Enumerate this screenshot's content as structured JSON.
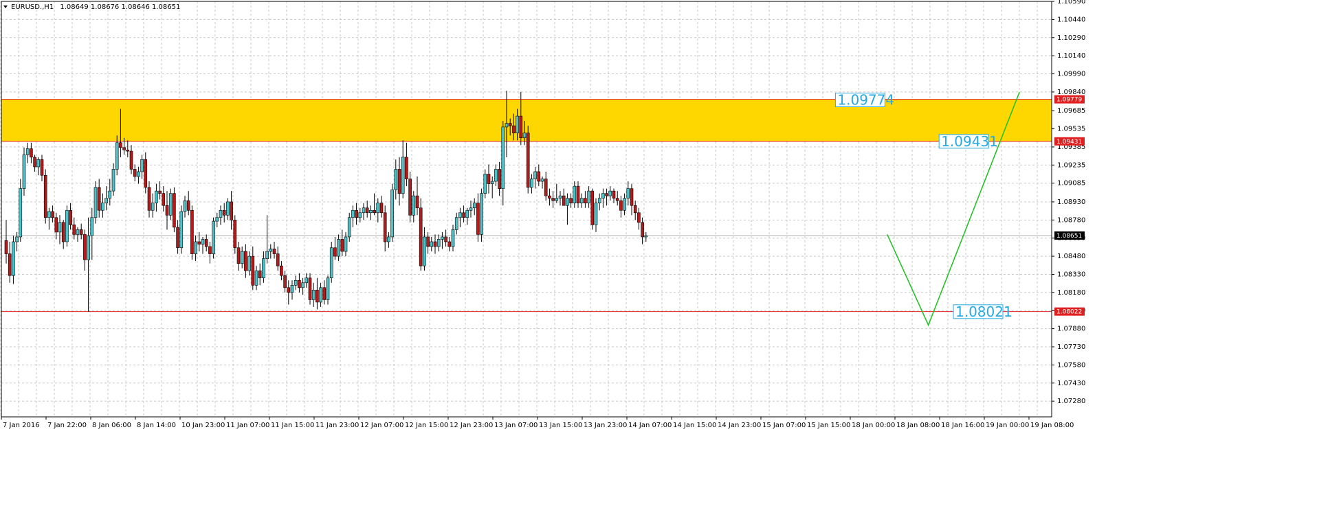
{
  "header": {
    "symbol": "EURUSD.,H1",
    "ohlc": "1.08649 1.08676 1.08646 1.08651"
  },
  "colors": {
    "background": "#ffffff",
    "grid": "#c8c8c8",
    "bull": "#4fc1c9",
    "bear": "#b31b1b",
    "zone_fill": "#ffd700",
    "zone_border": "#e02020",
    "support_line": "#e02020",
    "projection": "#27c227",
    "level_label": "#27a9e1",
    "price_tag_red": "#e02020",
    "price_tag_black": "#000000"
  },
  "chart_data": {
    "type": "candlestick",
    "symbol": "EURUSD.",
    "timeframe": "H1",
    "ylim": [
      1.0715,
      1.1059
    ],
    "y_ticks": [
      "1.10590",
      "1.10440",
      "1.10290",
      "1.10140",
      "1.09990",
      "1.09840",
      "1.09685",
      "1.09535",
      "1.09385",
      "1.09235",
      "1.09085",
      "1.08930",
      "1.08780",
      "1.08630",
      "1.08480",
      "1.08330",
      "1.08180",
      "1.08030",
      "1.07880",
      "1.07730",
      "1.07580",
      "1.07430",
      "1.07280"
    ],
    "x_labels": [
      "7 Jan 2016",
      "7 Jan 22:00",
      "8 Jan 06:00",
      "8 Jan 14:00",
      "10 Jan 23:00",
      "11 Jan 07:00",
      "11 Jan 15:00",
      "11 Jan 23:00",
      "12 Jan 07:00",
      "12 Jan 15:00",
      "12 Jan 23:00",
      "13 Jan 07:00",
      "13 Jan 15:00",
      "13 Jan 23:00",
      "14 Jan 07:00",
      "14 Jan 15:00",
      "14 Jan 23:00",
      "15 Jan 07:00",
      "15 Jan 15:00",
      "18 Jan 00:00",
      "18 Jan 08:00",
      "18 Jan 16:00",
      "19 Jan 00:00",
      "19 Jan 08:00"
    ],
    "grid": true,
    "zone": {
      "top": 1.09779,
      "bottom": 1.09431
    },
    "support": 1.08022,
    "current_price": 1.08651,
    "price_tags": [
      {
        "value": 1.09779,
        "text": "1.09779",
        "color": "red"
      },
      {
        "value": 1.09431,
        "text": "1.09431",
        "color": "red"
      },
      {
        "value": 1.08651,
        "text": "1.08651",
        "color": "black"
      },
      {
        "value": 1.08022,
        "text": "1.08022",
        "color": "red"
      }
    ],
    "level_labels": [
      {
        "text": "1.09774",
        "value": 1.09774,
        "bar": 232
      },
      {
        "text": "1.09431",
        "value": 1.09431,
        "bar": 261
      },
      {
        "text": "1.08021",
        "value": 1.08021,
        "bar": 265
      }
    ],
    "projection": [
      {
        "bar": 246.5,
        "value": 1.0866
      },
      {
        "bar": 258,
        "value": 1.0791
      },
      {
        "bar": 283.5,
        "value": 1.0984
      }
    ],
    "candles": [
      [
        1.0861,
        1.0878,
        1.0842,
        1.085
      ],
      [
        1.085,
        1.086,
        1.0826,
        1.0832
      ],
      [
        1.0832,
        1.0865,
        1.0825,
        1.086
      ],
      [
        1.086,
        1.0868,
        1.0852,
        1.0864
      ],
      [
        1.0864,
        1.0912,
        1.086,
        1.0904
      ],
      [
        1.0904,
        1.0938,
        1.0898,
        1.0932
      ],
      [
        1.0932,
        1.0942,
        1.0925,
        1.0937
      ],
      [
        1.0937,
        1.0942,
        1.0925,
        1.093
      ],
      [
        1.093,
        1.0932,
        1.0918,
        1.0922
      ],
      [
        1.0922,
        1.093,
        1.0915,
        1.0928
      ],
      [
        1.0928,
        1.0932,
        1.091,
        1.0915
      ],
      [
        1.0915,
        1.092,
        1.0875,
        1.088
      ],
      [
        1.088,
        1.0888,
        1.087,
        1.0885
      ],
      [
        1.0885,
        1.089,
        1.0876,
        1.088
      ],
      [
        1.088,
        1.0884,
        1.0862,
        1.0868
      ],
      [
        1.0868,
        1.0882,
        1.0858,
        1.0876
      ],
      [
        1.0876,
        1.0878,
        1.0854,
        1.086
      ],
      [
        1.086,
        1.089,
        1.0856,
        1.0886
      ],
      [
        1.0886,
        1.0892,
        1.087,
        1.0874
      ],
      [
        1.0874,
        1.088,
        1.0862,
        1.0866
      ],
      [
        1.0866,
        1.0872,
        1.086,
        1.087
      ],
      [
        1.087,
        1.0875,
        1.0862,
        1.0866
      ],
      [
        1.0866,
        1.087,
        1.0836,
        1.0845
      ],
      [
        1.0845,
        1.088,
        1.0802,
        1.0865
      ],
      [
        1.0865,
        1.0888,
        1.0845,
        1.088
      ],
      [
        1.088,
        1.091,
        1.0875,
        1.0905
      ],
      [
        1.0905,
        1.0912,
        1.088,
        1.0886
      ],
      [
        1.0886,
        1.09,
        1.088,
        1.0892
      ],
      [
        1.0892,
        1.0906,
        1.0886,
        1.0896
      ],
      [
        1.0896,
        1.0912,
        1.089,
        1.0902
      ],
      [
        1.0902,
        1.0925,
        1.0898,
        1.092
      ],
      [
        1.092,
        1.0948,
        1.0915,
        1.0942
      ],
      [
        1.0942,
        1.097,
        1.093,
        1.0938
      ],
      [
        1.0938,
        1.0946,
        1.0932,
        1.0936
      ],
      [
        1.0936,
        1.0944,
        1.093,
        1.0935
      ],
      [
        1.0935,
        1.094,
        1.0916,
        1.092
      ],
      [
        1.092,
        1.0924,
        1.091,
        1.0914
      ],
      [
        1.0914,
        1.0922,
        1.0908,
        1.0918
      ],
      [
        1.0918,
        1.0932,
        1.0912,
        1.0928
      ],
      [
        1.0928,
        1.0934,
        1.09,
        1.0905
      ],
      [
        1.0905,
        1.091,
        1.088,
        1.0886
      ],
      [
        1.0886,
        1.09,
        1.088,
        1.0892
      ],
      [
        1.0892,
        1.0908,
        1.0885,
        1.0902
      ],
      [
        1.0902,
        1.091,
        1.0895,
        1.09
      ],
      [
        1.09,
        1.0906,
        1.0885,
        1.089
      ],
      [
        1.089,
        1.0902,
        1.087,
        1.0882
      ],
      [
        1.0882,
        1.0904,
        1.0878,
        1.09
      ],
      [
        1.09,
        1.0905,
        1.0868,
        1.0872
      ],
      [
        1.0872,
        1.0878,
        1.085,
        1.0855
      ],
      [
        1.0855,
        1.089,
        1.085,
        1.0885
      ],
      [
        1.0885,
        1.0898,
        1.088,
        1.0894
      ],
      [
        1.0894,
        1.0902,
        1.0882,
        1.0886
      ],
      [
        1.0886,
        1.089,
        1.0845,
        1.085
      ],
      [
        1.085,
        1.0865,
        1.0844,
        1.086
      ],
      [
        1.086,
        1.0868,
        1.0852,
        1.0858
      ],
      [
        1.0858,
        1.0864,
        1.085,
        1.0862
      ],
      [
        1.0862,
        1.0866,
        1.0852,
        1.0856
      ],
      [
        1.0856,
        1.086,
        1.0842,
        1.085
      ],
      [
        1.085,
        1.088,
        1.0846,
        1.0877
      ],
      [
        1.0877,
        1.0884,
        1.0872,
        1.088
      ],
      [
        1.088,
        1.089,
        1.0874,
        1.0886
      ],
      [
        1.0886,
        1.0892,
        1.0876,
        1.0882
      ],
      [
        1.0882,
        1.0896,
        1.0878,
        1.0893
      ],
      [
        1.0893,
        1.0902,
        1.087,
        1.0878
      ],
      [
        1.0878,
        1.0882,
        1.085,
        1.0855
      ],
      [
        1.0855,
        1.086,
        1.0836,
        1.0842
      ],
      [
        1.0842,
        1.0856,
        1.0838,
        1.0852
      ],
      [
        1.0852,
        1.0858,
        1.083,
        1.0836
      ],
      [
        1.0836,
        1.0852,
        1.0832,
        1.0848
      ],
      [
        1.0848,
        1.0856,
        1.082,
        1.0824
      ],
      [
        1.0824,
        1.084,
        1.082,
        1.0836
      ],
      [
        1.0836,
        1.0842,
        1.0824,
        1.083
      ],
      [
        1.083,
        1.0852,
        1.0826,
        1.0846
      ],
      [
        1.0846,
        1.0882,
        1.0842,
        1.0852
      ],
      [
        1.0852,
        1.0858,
        1.0846,
        1.0854
      ],
      [
        1.0854,
        1.086,
        1.0846,
        1.085
      ],
      [
        1.085,
        1.0856,
        1.0836,
        1.084
      ],
      [
        1.084,
        1.0844,
        1.0828,
        1.0832
      ],
      [
        1.0832,
        1.0836,
        1.0818,
        1.0822
      ],
      [
        1.0822,
        1.0828,
        1.0808,
        1.0818
      ],
      [
        1.0818,
        1.0828,
        1.0812,
        1.0824
      ],
      [
        1.0824,
        1.0832,
        1.082,
        1.0828
      ],
      [
        1.0828,
        1.0834,
        1.0818,
        1.0822
      ],
      [
        1.0822,
        1.083,
        1.0816,
        1.0826
      ],
      [
        1.0826,
        1.0834,
        1.0822,
        1.083
      ],
      [
        1.083,
        1.0834,
        1.0808,
        1.0812
      ],
      [
        1.0812,
        1.0826,
        1.0806,
        1.082
      ],
      [
        1.082,
        1.083,
        1.0804,
        1.081
      ],
      [
        1.081,
        1.0826,
        1.0806,
        1.0822
      ],
      [
        1.0822,
        1.0828,
        1.0808,
        1.0812
      ],
      [
        1.0812,
        1.0832,
        1.0808,
        1.083
      ],
      [
        1.083,
        1.086,
        1.0826,
        1.0855
      ],
      [
        1.0855,
        1.0864,
        1.0845,
        1.0848
      ],
      [
        1.0848,
        1.0866,
        1.0844,
        1.0862
      ],
      [
        1.0862,
        1.087,
        1.0848,
        1.0852
      ],
      [
        1.0852,
        1.0868,
        1.0848,
        1.0864
      ],
      [
        1.0864,
        1.0884,
        1.086,
        1.088
      ],
      [
        1.088,
        1.089,
        1.0872,
        1.0886
      ],
      [
        1.0886,
        1.0892,
        1.0874,
        1.088
      ],
      [
        1.088,
        1.0888,
        1.0876,
        1.0884
      ],
      [
        1.0884,
        1.0892,
        1.0878,
        1.0888
      ],
      [
        1.0888,
        1.0894,
        1.088,
        1.0884
      ],
      [
        1.0884,
        1.089,
        1.0878,
        1.0886
      ],
      [
        1.0886,
        1.09,
        1.0882,
        1.0884
      ],
      [
        1.0884,
        1.0896,
        1.0876,
        1.0892
      ],
      [
        1.0892,
        1.0898,
        1.088,
        1.0884
      ],
      [
        1.0884,
        1.089,
        1.0852,
        1.086
      ],
      [
        1.086,
        1.0868,
        1.0855,
        1.0864
      ],
      [
        1.0864,
        1.0908,
        1.086,
        1.0903
      ],
      [
        1.0903,
        1.0928,
        1.0895,
        1.092
      ],
      [
        1.092,
        1.093,
        1.089,
        1.09
      ],
      [
        1.09,
        1.0944,
        1.0896,
        1.093
      ],
      [
        1.093,
        1.0942,
        1.0906,
        1.0912
      ],
      [
        1.0912,
        1.0918,
        1.0876,
        1.0882
      ],
      [
        1.0882,
        1.0902,
        1.0876,
        1.0898
      ],
      [
        1.0898,
        1.0914,
        1.0882,
        1.0888
      ],
      [
        1.0888,
        1.0896,
        1.0836,
        1.084
      ],
      [
        1.084,
        1.0872,
        1.0836,
        1.0864
      ],
      [
        1.0864,
        1.0868,
        1.085,
        1.0856
      ],
      [
        1.0856,
        1.0864,
        1.0852,
        1.086
      ],
      [
        1.086,
        1.0866,
        1.085,
        1.0856
      ],
      [
        1.0856,
        1.0866,
        1.0852,
        1.0862
      ],
      [
        1.0862,
        1.0868,
        1.0854,
        1.0864
      ],
      [
        1.0864,
        1.087,
        1.0856,
        1.086
      ],
      [
        1.086,
        1.0864,
        1.0852,
        1.0856
      ],
      [
        1.0856,
        1.0874,
        1.0852,
        1.087
      ],
      [
        1.087,
        1.0884,
        1.0866,
        1.088
      ],
      [
        1.088,
        1.0888,
        1.0872,
        1.0884
      ],
      [
        1.0884,
        1.089,
        1.0876,
        1.088
      ],
      [
        1.088,
        1.0888,
        1.0874,
        1.0886
      ],
      [
        1.0886,
        1.0894,
        1.088,
        1.0888
      ],
      [
        1.0888,
        1.0896,
        1.0882,
        1.0892
      ],
      [
        1.0892,
        1.09,
        1.086,
        1.0866
      ],
      [
        1.0866,
        1.0904,
        1.086,
        1.09
      ],
      [
        1.09,
        1.092,
        1.0896,
        1.0916
      ],
      [
        1.0916,
        1.0924,
        1.09,
        1.0908
      ],
      [
        1.0908,
        1.0914,
        1.0896,
        1.091
      ],
      [
        1.091,
        1.0924,
        1.0906,
        1.092
      ],
      [
        1.092,
        1.0926,
        1.0898,
        1.0904
      ],
      [
        1.0904,
        1.096,
        1.089,
        1.0955
      ],
      [
        1.0955,
        1.0985,
        1.093,
        1.0958
      ],
      [
        1.0958,
        1.0962,
        1.0948,
        1.0956
      ],
      [
        1.0956,
        1.0966,
        1.0944,
        1.095
      ],
      [
        1.095,
        1.097,
        1.0944,
        1.0964
      ],
      [
        1.0964,
        1.0984,
        1.094,
        1.0946
      ],
      [
        1.0946,
        1.096,
        1.094,
        1.095
      ],
      [
        1.095,
        1.0956,
        1.09,
        1.0905
      ],
      [
        1.0905,
        1.0916,
        1.09,
        1.0912
      ],
      [
        1.0912,
        1.0922,
        1.0904,
        1.0918
      ],
      [
        1.0918,
        1.0924,
        1.0906,
        1.091
      ],
      [
        1.091,
        1.0914,
        1.0904,
        1.0912
      ],
      [
        1.0912,
        1.0918,
        1.0894,
        1.0898
      ],
      [
        1.0898,
        1.0904,
        1.089,
        1.0896
      ],
      [
        1.0896,
        1.0902,
        1.0888,
        1.0894
      ],
      [
        1.0894,
        1.0908,
        1.0892,
        1.0896
      ],
      [
        1.0896,
        1.0902,
        1.089,
        1.0898
      ],
      [
        1.0898,
        1.0904,
        1.0892,
        1.089
      ],
      [
        1.089,
        1.09,
        1.0874,
        1.0896
      ],
      [
        1.0896,
        1.09,
        1.0888,
        1.0892
      ],
      [
        1.0892,
        1.091,
        1.0888,
        1.0906
      ],
      [
        1.0906,
        1.091,
        1.0888,
        1.0892
      ],
      [
        1.0892,
        1.09,
        1.0888,
        1.0896
      ],
      [
        1.0896,
        1.0902,
        1.0888,
        1.0892
      ],
      [
        1.0892,
        1.0906,
        1.0888,
        1.0902
      ],
      [
        1.0902,
        1.0904,
        1.087,
        1.0874
      ],
      [
        1.0874,
        1.0896,
        1.0868,
        1.0892
      ],
      [
        1.0892,
        1.09,
        1.0886,
        1.0896
      ],
      [
        1.0896,
        1.0904,
        1.0888,
        1.09
      ],
      [
        1.09,
        1.0904,
        1.089,
        1.0898
      ],
      [
        1.0898,
        1.0906,
        1.0894,
        1.0902
      ],
      [
        1.0902,
        1.0904,
        1.0892,
        1.0896
      ],
      [
        1.0896,
        1.0902,
        1.089,
        1.0894
      ],
      [
        1.0894,
        1.0898,
        1.088,
        1.0886
      ],
      [
        1.0886,
        1.09,
        1.0882,
        1.0896
      ],
      [
        1.0896,
        1.091,
        1.089,
        1.0904
      ],
      [
        1.0904,
        1.0908,
        1.0882,
        1.089
      ],
      [
        1.089,
        1.0894,
        1.0878,
        1.0884
      ],
      [
        1.0884,
        1.0888,
        1.087,
        1.0876
      ],
      [
        1.0876,
        1.088,
        1.0858,
        1.0864
      ],
      [
        1.0864,
        1.0868,
        1.086,
        1.0865
      ]
    ]
  }
}
